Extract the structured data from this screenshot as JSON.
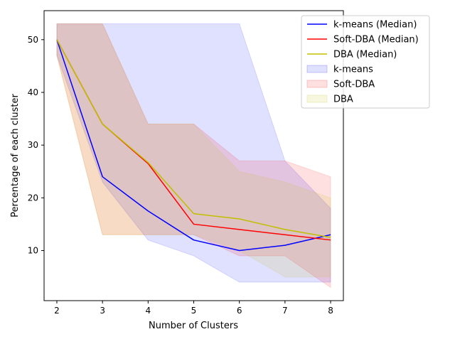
{
  "chart_data": {
    "type": "line",
    "xlabel": "Number of Clusters",
    "ylabel": "Percentage of each cluster",
    "x": [
      2,
      3,
      4,
      5,
      6,
      7,
      8
    ],
    "xlim": [
      1.72,
      8.28
    ],
    "ylim": [
      0.5,
      55.5
    ],
    "xticks": [
      2,
      3,
      4,
      5,
      6,
      7,
      8
    ],
    "yticks": [
      10,
      20,
      30,
      40,
      50
    ],
    "grid": false,
    "legend_position": "top-right",
    "series": [
      {
        "name": "k-means (Median)",
        "color": "#0000ff",
        "values": [
          50,
          24,
          17.5,
          12,
          10,
          11,
          13
        ]
      },
      {
        "name": "Soft-DBA (Median)",
        "color": "#ff0000",
        "values": [
          50,
          34,
          26.5,
          15,
          14,
          13,
          12
        ]
      },
      {
        "name": "DBA (Median)",
        "color": "#bfbf00",
        "values": [
          50,
          34,
          26.7,
          17,
          16,
          14,
          12.5
        ]
      }
    ],
    "bands": [
      {
        "name": "k-means",
        "color": "#0000ff",
        "opacity": 0.12,
        "lower": [
          47,
          23,
          12,
          9,
          4,
          4,
          4
        ],
        "upper": [
          53,
          53,
          53,
          53,
          53,
          27,
          18
        ]
      },
      {
        "name": "Soft-DBA",
        "color": "#ff0000",
        "opacity": 0.12,
        "lower": [
          47,
          13,
          13,
          13,
          9,
          9,
          3
        ],
        "upper": [
          53,
          53,
          34,
          34,
          27,
          27,
          24
        ]
      },
      {
        "name": "DBA",
        "color": "#bfbf00",
        "opacity": 0.12,
        "lower": [
          47,
          13,
          13,
          13,
          10,
          5,
          5
        ],
        "upper": [
          53,
          53,
          34,
          34,
          25,
          23,
          20
        ]
      }
    ]
  }
}
